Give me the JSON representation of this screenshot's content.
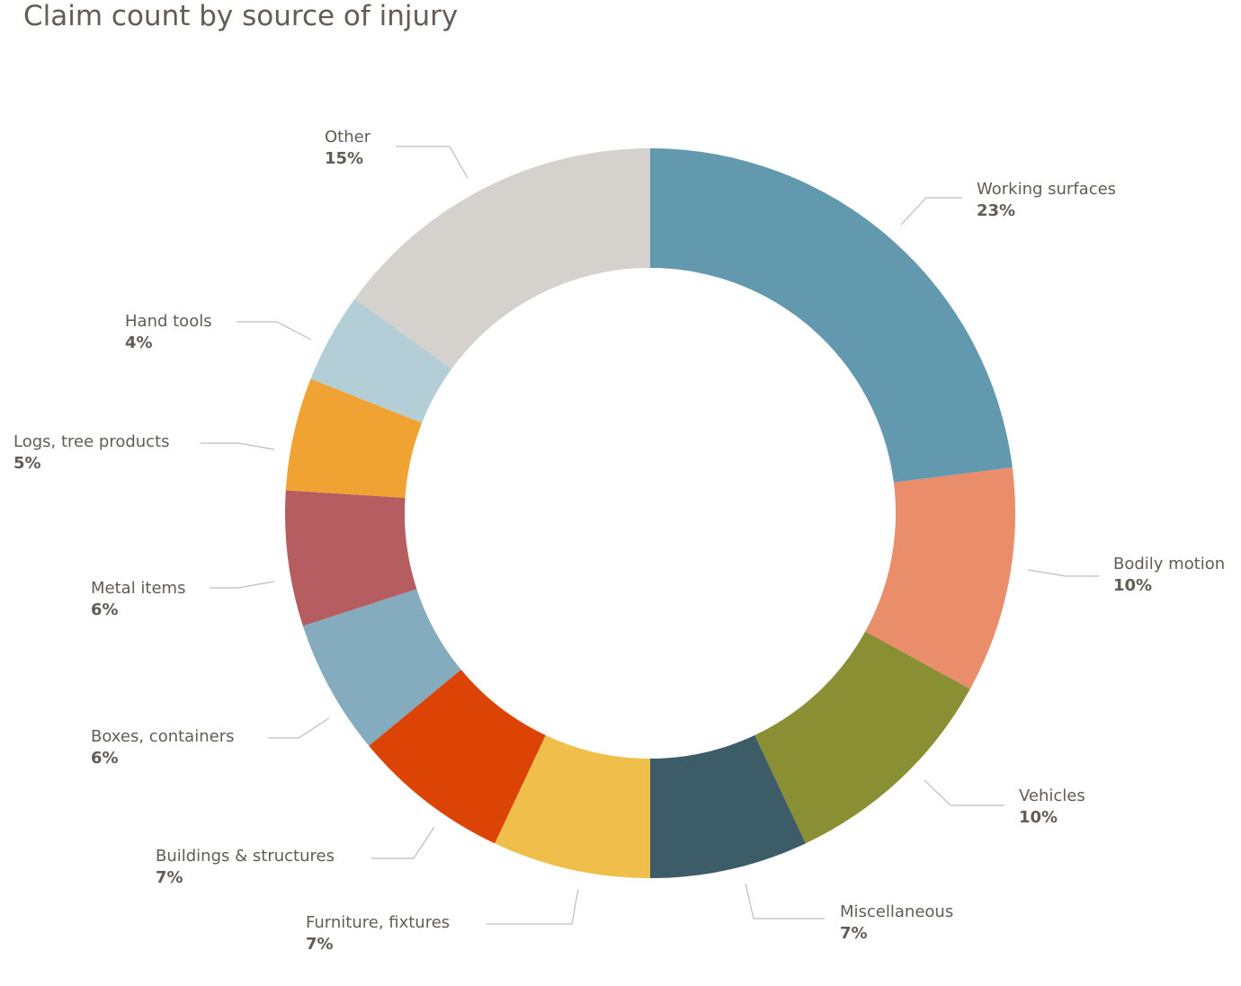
{
  "chart_data": {
    "type": "pie",
    "variant": "donut",
    "title": "Claim count by source of injury",
    "slices": [
      {
        "label": "Working surfaces",
        "value": 23,
        "display": "23%",
        "color": "#6399ae"
      },
      {
        "label": "Bodily motion",
        "value": 10,
        "display": "10%",
        "color": "#ea8d6b"
      },
      {
        "label": "Vehicles",
        "value": 10,
        "display": "10%",
        "color": "#8a8f33"
      },
      {
        "label": "Miscellaneous",
        "value": 7,
        "display": "7%",
        "color": "#3c5c68"
      },
      {
        "label": "Furniture, fixtures",
        "value": 7,
        "display": "7%",
        "color": "#f0be4a"
      },
      {
        "label": "Buildings & structures",
        "value": 7,
        "display": "7%",
        "color": "#dc4405"
      },
      {
        "label": "Boxes, containers",
        "value": 6,
        "display": "6%",
        "color": "#84acbe"
      },
      {
        "label": "Metal items",
        "value": 6,
        "display": "6%",
        "color": "#b55d60"
      },
      {
        "label": "Logs, tree products",
        "value": 5,
        "display": "5%",
        "color": "#f0a332"
      },
      {
        "label": "Hand tools",
        "value": 4,
        "display": "4%",
        "color": "#b4ced8"
      },
      {
        "label": "Other",
        "value": 15,
        "display": "15%",
        "color": "#d5d2cd"
      }
    ],
    "start": "top",
    "direction": "clockwise",
    "legend": "none (direct labels with leader lines)"
  }
}
